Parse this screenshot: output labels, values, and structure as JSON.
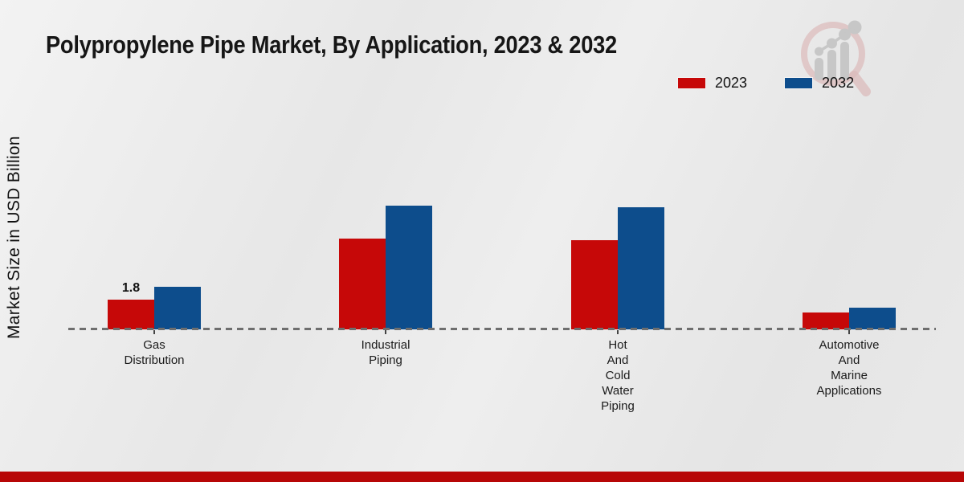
{
  "title": "Polypropylene Pipe Market, By Application, 2023 & 2032",
  "y_axis_label": "Market Size in USD Billion",
  "legend": {
    "items": [
      {
        "label": "2023",
        "color": "#c60808"
      },
      {
        "label": "2032",
        "color": "#0d4d8c"
      }
    ]
  },
  "icons": {
    "watermark": "magnifier-growth-chart-watermark"
  },
  "footer": {
    "accent_color": "#b70606"
  },
  "chart_data": {
    "type": "bar",
    "title": "Polypropylene Pipe Market, By Application, 2023 & 2032",
    "xlabel": "",
    "ylabel": "Market Size in USD Billion",
    "unit": "USD Billion",
    "categories": [
      "Gas Distribution",
      "Industrial Piping",
      "Hot And Cold Water Piping",
      "Automotive And Marine Applications"
    ],
    "category_label_lines": [
      [
        "Gas",
        "Distribution"
      ],
      [
        "Industrial",
        "Piping"
      ],
      [
        "Hot",
        "And",
        "Cold",
        "Water",
        "Piping"
      ],
      [
        "Automotive",
        "And",
        "Marine",
        "Applications"
      ]
    ],
    "series": [
      {
        "name": "2023",
        "color": "#c60808",
        "values": [
          1.8,
          5.5,
          5.4,
          1.0
        ],
        "data_labels": [
          "1.8",
          "",
          "",
          ""
        ]
      },
      {
        "name": "2032",
        "color": "#0d4d8c",
        "values": [
          2.6,
          7.5,
          7.4,
          1.3
        ],
        "data_labels": [
          "",
          "",
          "",
          ""
        ]
      }
    ],
    "y_axis_ticks_visible": false,
    "grid": false,
    "baseline_style": "dashed",
    "legend_position": "top-right"
  }
}
